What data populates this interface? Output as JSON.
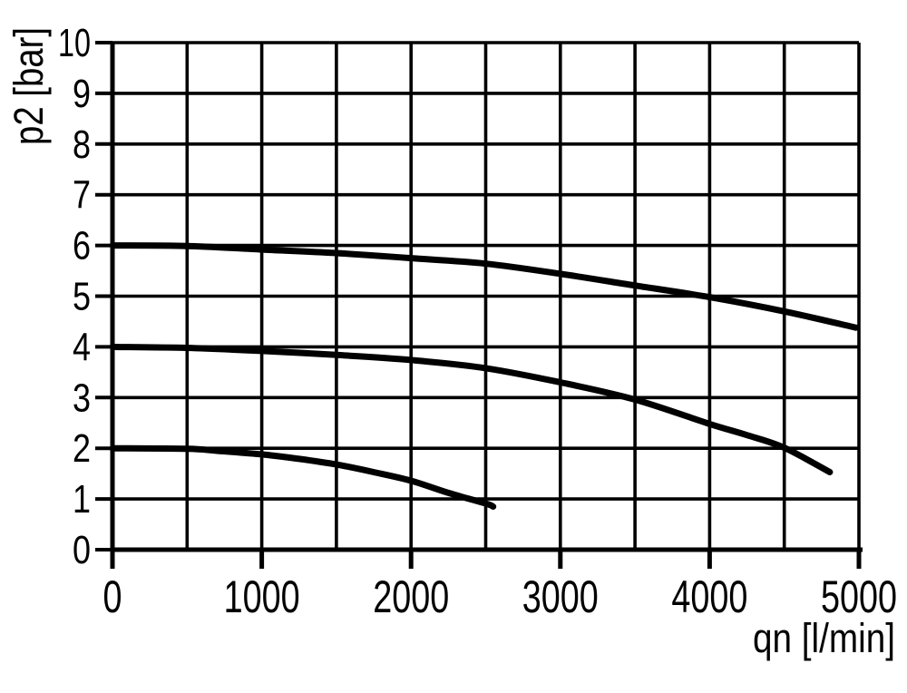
{
  "figure": {
    "background": "#ffffff",
    "foreground": "#000000"
  },
  "chart_data": {
    "type": "line",
    "title": "",
    "xlabel": "qn [l/min]",
    "ylabel": "p2 [bar]",
    "xlim": [
      0,
      5000
    ],
    "ylim": [
      0,
      10
    ],
    "x_tick_labels": [
      "0",
      "1000",
      "2000",
      "3000",
      "4000",
      "5000"
    ],
    "x_tick_values": [
      0,
      1000,
      2000,
      3000,
      4000,
      5000
    ],
    "x_gridline_step": 500,
    "y_tick_labels": [
      "0",
      "1",
      "2",
      "3",
      "4",
      "5",
      "6",
      "7",
      "8",
      "9",
      "10"
    ],
    "y_tick_values": [
      0,
      1,
      2,
      3,
      4,
      5,
      6,
      7,
      8,
      9,
      10
    ],
    "y_gridline_step": 1,
    "grid": "on",
    "legend": "none",
    "line_color": "#000000",
    "series": [
      {
        "id": "curve-inlet-6bar",
        "start_pressure_bar": 6,
        "points": [
          [
            0,
            6.0
          ],
          [
            500,
            5.99
          ],
          [
            1000,
            5.92
          ],
          [
            1500,
            5.85
          ],
          [
            2000,
            5.75
          ],
          [
            2500,
            5.64
          ],
          [
            3000,
            5.44
          ],
          [
            3500,
            5.21
          ],
          [
            4000,
            4.98
          ],
          [
            4500,
            4.7
          ],
          [
            4980,
            4.38
          ]
        ]
      },
      {
        "id": "curve-inlet-4bar",
        "start_pressure_bar": 4,
        "points": [
          [
            0,
            4.0
          ],
          [
            500,
            3.98
          ],
          [
            1000,
            3.92
          ],
          [
            1500,
            3.84
          ],
          [
            2000,
            3.74
          ],
          [
            2500,
            3.58
          ],
          [
            3000,
            3.3
          ],
          [
            3500,
            2.96
          ],
          [
            4000,
            2.48
          ],
          [
            4250,
            2.26
          ],
          [
            4500,
            2.01
          ],
          [
            4805,
            1.53
          ]
        ]
      },
      {
        "id": "curve-inlet-2bar",
        "start_pressure_bar": 2,
        "points": [
          [
            0,
            2.0
          ],
          [
            500,
            1.99
          ],
          [
            700,
            1.95
          ],
          [
            1000,
            1.88
          ],
          [
            1250,
            1.79
          ],
          [
            1500,
            1.68
          ],
          [
            1750,
            1.53
          ],
          [
            2000,
            1.36
          ],
          [
            2250,
            1.12
          ],
          [
            2500,
            0.91
          ],
          [
            2550,
            0.85
          ]
        ]
      }
    ]
  }
}
